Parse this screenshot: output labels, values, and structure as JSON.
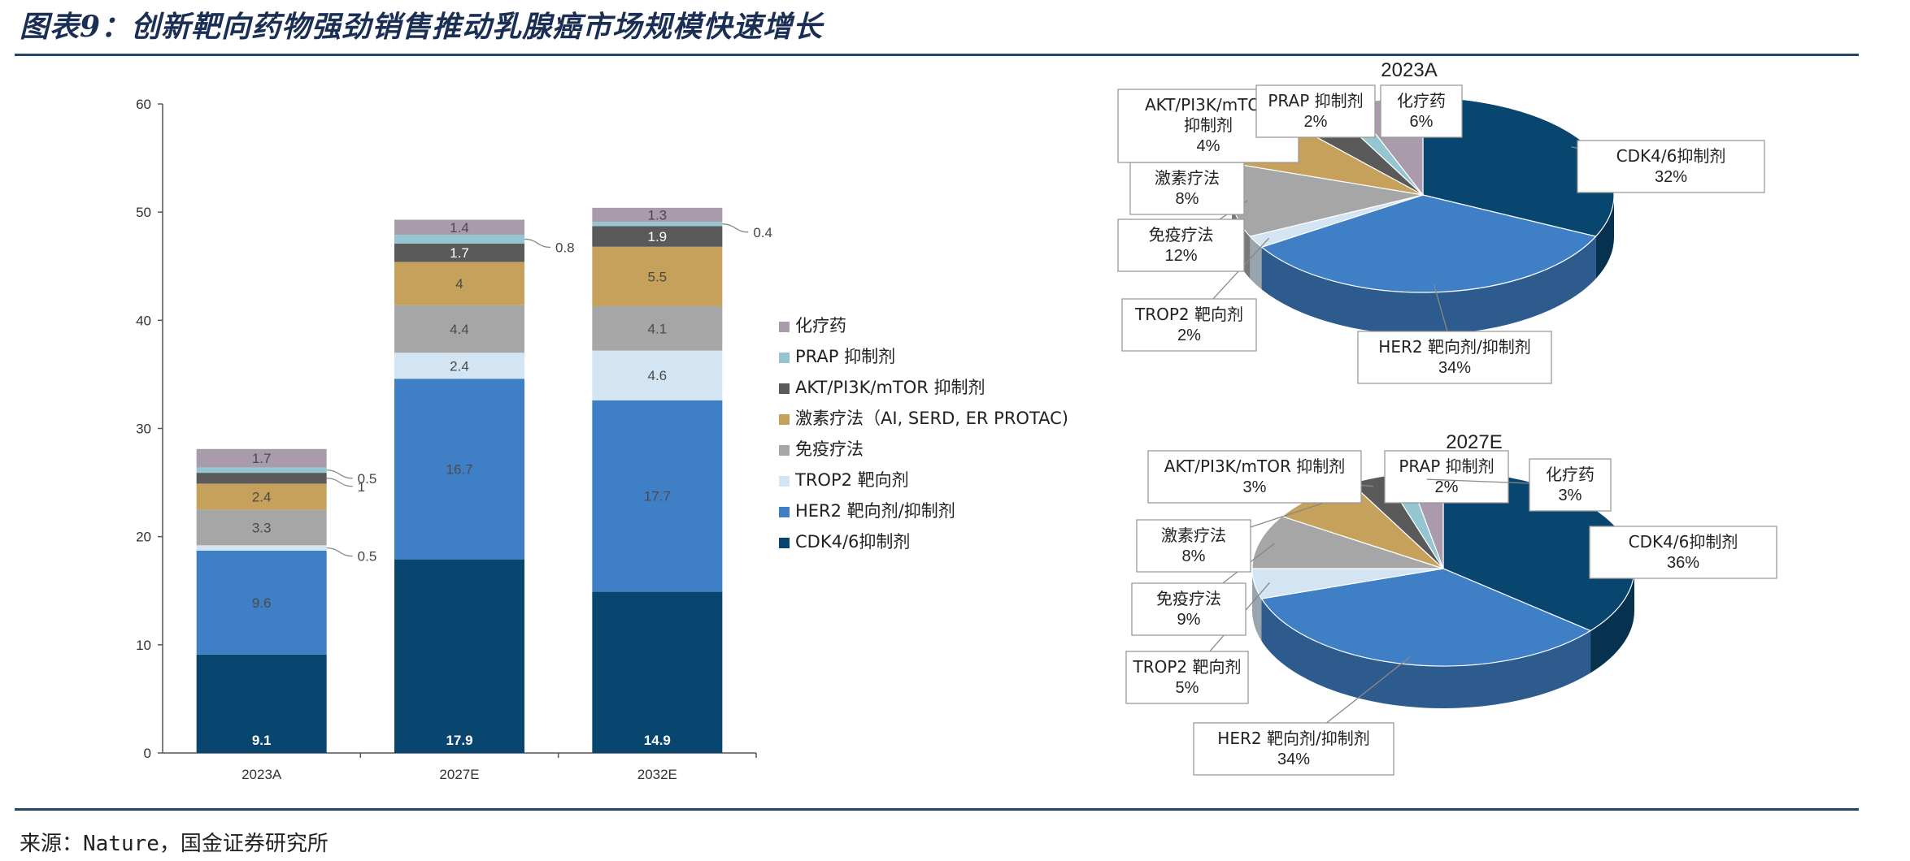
{
  "figure": {
    "title": "图表9：创新靶向药物强劲销售推动乳腺癌市场规模快速增长",
    "source": "来源：Nature，国金证券研究所"
  },
  "categories_legend": [
    {
      "name": "化疗药",
      "color": "#a99aac"
    },
    {
      "name": "PRAP 抑制剂",
      "color": "#94c5d0"
    },
    {
      "name": "AKT/PI3K/mTOR 抑制剂",
      "color": "#5a5a5a"
    },
    {
      "name": "激素疗法（AI, SERD, ER PROTAC)",
      "color": "#c6a15b"
    },
    {
      "name": "免疫疗法",
      "color": "#a6a6a6"
    },
    {
      "name": "TROP2 靶向剂",
      "color": "#d3e5f3"
    },
    {
      "name": "HER2 靶向剂/抑制剂",
      "color": "#3f7fc5"
    },
    {
      "name": "CDK4/6抑制剂",
      "color": "#08456f"
    }
  ],
  "chart_data": [
    {
      "type": "bar",
      "stacked": true,
      "categories": [
        "2023A",
        "2027E",
        "2032E"
      ],
      "ylim": [
        0,
        60
      ],
      "yticks": [
        0,
        10,
        20,
        30,
        40,
        50,
        60
      ],
      "grid": false,
      "legend_position": "right",
      "series": [
        {
          "name": "CDK4/6抑制剂",
          "values": [
            9.1,
            17.9,
            14.9
          ],
          "labels": [
            "9.1",
            "17.9",
            "14.9"
          ]
        },
        {
          "name": "HER2 靶向剂/抑制剂",
          "values": [
            9.6,
            16.7,
            17.7
          ],
          "labels": [
            "9.6",
            "16.7",
            "17.7"
          ]
        },
        {
          "name": "TROP2 靶向剂",
          "values": [
            0.5,
            2.4,
            4.6
          ],
          "labels": [
            "0.5",
            "2.4",
            "4.6"
          ]
        },
        {
          "name": "免疫疗法",
          "values": [
            3.3,
            4.4,
            4.1
          ],
          "labels": [
            "3.3",
            "4.4",
            "4.1"
          ]
        },
        {
          "name": "激素疗法（AI, SERD, ER PROTAC)",
          "values": [
            2.4,
            4,
            5.5
          ],
          "labels": [
            "2.4",
            "4",
            "5.5"
          ]
        },
        {
          "name": "AKT/PI3K/mTOR 抑制剂",
          "values": [
            1,
            1.7,
            1.9
          ],
          "labels": [
            "1",
            "1.7",
            "1.9"
          ]
        },
        {
          "name": "PRAP 抑制剂",
          "values": [
            0.5,
            0.8,
            0.4
          ],
          "labels": [
            "0.5",
            "0.8",
            "0.4"
          ]
        },
        {
          "name": "化疗药",
          "values": [
            1.7,
            1.4,
            1.3
          ],
          "labels": [
            "1.7",
            "1.4",
            "1.3"
          ]
        }
      ]
    },
    {
      "type": "pie",
      "title": "2023A",
      "slices": [
        {
          "name": "CDK4/6抑制剂",
          "value": 32,
          "label": "32%"
        },
        {
          "name": "HER2 靶向剂/抑制剂",
          "value": 34,
          "label": "34%"
        },
        {
          "name": "TROP2 靶向剂",
          "value": 2,
          "label": "2%"
        },
        {
          "name": "免疫疗法",
          "value": 12,
          "label": "12%"
        },
        {
          "name": "激素疗法",
          "value": 8,
          "label": "8%"
        },
        {
          "name": "AKT/PI3K/mTOR 抑制剂",
          "value": 4,
          "label": "4%"
        },
        {
          "name": "PRAP 抑制剂",
          "value": 2,
          "label": "2%"
        },
        {
          "name": "化疗药",
          "value": 6,
          "label": "6%"
        }
      ]
    },
    {
      "type": "pie",
      "title": "2027E",
      "slices": [
        {
          "name": "CDK4/6抑制剂",
          "value": 36,
          "label": "36%"
        },
        {
          "name": "HER2 靶向剂/抑制剂",
          "value": 34,
          "label": "34%"
        },
        {
          "name": "TROP2 靶向剂",
          "value": 5,
          "label": "5%"
        },
        {
          "name": "免疫疗法",
          "value": 9,
          "label": "9%"
        },
        {
          "name": "激素疗法",
          "value": 8,
          "label": "8%"
        },
        {
          "name": "AKT/PI3K/mTOR 抑制剂",
          "value": 3,
          "label": "3%"
        },
        {
          "name": "PRAP 抑制剂",
          "value": 2,
          "label": "2%"
        },
        {
          "name": "化疗药",
          "value": 3,
          "label": "3%"
        }
      ]
    }
  ]
}
